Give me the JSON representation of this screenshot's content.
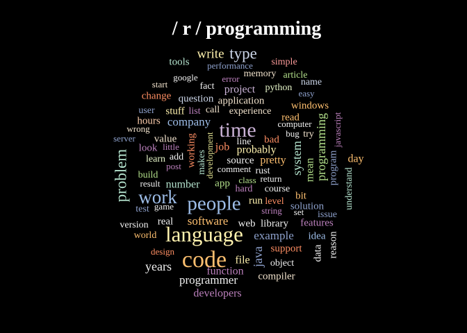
{
  "chart_data": {
    "type": "wordcloud",
    "title": "/ r / programming",
    "palette": {
      "pink": "#f4cae4",
      "green": "#b3e2cd",
      "orange": "#fdcdac",
      "blue": "#cbd5e8",
      "lime": "#e6f5c9",
      "yellow": "#fff2ae",
      "tan": "#f1e2cc",
      "gray": "#cccccc",
      "cream": "#fbeeb8",
      "lightblue": "#9dbde8",
      "gold": "#fdbf6f",
      "peach": "#fb9a99",
      "purple": "#cab2d6",
      "mint": "#b2df8a",
      "white": "#f0f0f0",
      "salmon": "#fc8d62",
      "violet": "#bc80bd",
      "sky": "#8da0cb",
      "khaki": "#d9d98c",
      "lavender": "#9e9ac8"
    },
    "words": [
      {
        "text": "write",
        "color": "yellow",
        "rotate": false
      },
      {
        "text": "type",
        "color": "blue",
        "rotate": false
      },
      {
        "text": "tools",
        "color": "green",
        "rotate": false
      },
      {
        "text": "performance",
        "color": "sky",
        "rotate": false
      },
      {
        "text": "simple",
        "color": "peach",
        "rotate": false
      },
      {
        "text": "google",
        "color": "white",
        "rotate": false
      },
      {
        "text": "error",
        "color": "violet",
        "rotate": false
      },
      {
        "text": "memory",
        "color": "tan",
        "rotate": false
      },
      {
        "text": "article",
        "color": "mint",
        "rotate": false
      },
      {
        "text": "start",
        "color": "tan",
        "rotate": false
      },
      {
        "text": "fact",
        "color": "white",
        "rotate": false
      },
      {
        "text": "project",
        "color": "purple",
        "rotate": false
      },
      {
        "text": "python",
        "color": "lime",
        "rotate": false
      },
      {
        "text": "name",
        "color": "blue",
        "rotate": false
      },
      {
        "text": "change",
        "color": "salmon",
        "rotate": false
      },
      {
        "text": "question",
        "color": "blue",
        "rotate": false
      },
      {
        "text": "application",
        "color": "tan",
        "rotate": false
      },
      {
        "text": "easy",
        "color": "sky",
        "rotate": false
      },
      {
        "text": "windows",
        "color": "gold",
        "rotate": false
      },
      {
        "text": "user",
        "color": "sky",
        "rotate": false
      },
      {
        "text": "stuff",
        "color": "yellow",
        "rotate": false
      },
      {
        "text": "list",
        "color": "violet",
        "rotate": false
      },
      {
        "text": "call",
        "color": "tan",
        "rotate": false
      },
      {
        "text": "experience",
        "color": "tan",
        "rotate": false
      },
      {
        "text": "read",
        "color": "gold",
        "rotate": false
      },
      {
        "text": "hours",
        "color": "orange",
        "rotate": false
      },
      {
        "text": "company",
        "color": "lightblue",
        "rotate": false
      },
      {
        "text": "time",
        "color": "purple",
        "rotate": false
      },
      {
        "text": "computer",
        "color": "white",
        "rotate": false
      },
      {
        "text": "wrong",
        "color": "tan",
        "rotate": false
      },
      {
        "text": "bug",
        "color": "white",
        "rotate": false
      },
      {
        "text": "try",
        "color": "tan",
        "rotate": false
      },
      {
        "text": "javascript",
        "color": "violet",
        "rotate": true
      },
      {
        "text": "server",
        "color": "sky",
        "rotate": false
      },
      {
        "text": "value",
        "color": "tan",
        "rotate": false
      },
      {
        "text": "working",
        "color": "salmon",
        "rotate": true
      },
      {
        "text": "development",
        "color": "khaki",
        "rotate": true
      },
      {
        "text": "line",
        "color": "white",
        "rotate": false
      },
      {
        "text": "bad",
        "color": "salmon",
        "rotate": false
      },
      {
        "text": "look",
        "color": "violet",
        "rotate": false
      },
      {
        "text": "little",
        "color": "violet",
        "rotate": false
      },
      {
        "text": "job",
        "color": "salmon",
        "rotate": false
      },
      {
        "text": "probably",
        "color": "yellow",
        "rotate": false
      },
      {
        "text": "system",
        "color": "green",
        "rotate": true
      },
      {
        "text": "programming",
        "color": "mint",
        "rotate": true
      },
      {
        "text": "day",
        "color": "gold",
        "rotate": false
      },
      {
        "text": "learn",
        "color": "lime",
        "rotate": false
      },
      {
        "text": "add",
        "color": "white",
        "rotate": false
      },
      {
        "text": "makes",
        "color": "green",
        "rotate": true
      },
      {
        "text": "source",
        "color": "white",
        "rotate": false
      },
      {
        "text": "pretty",
        "color": "gold",
        "rotate": false
      },
      {
        "text": "mean",
        "color": "mint",
        "rotate": true
      },
      {
        "text": "program",
        "color": "sky",
        "rotate": true
      },
      {
        "text": "problem",
        "color": "green",
        "rotate": true
      },
      {
        "text": "post",
        "color": "violet",
        "rotate": false
      },
      {
        "text": "comment",
        "color": "white",
        "rotate": false
      },
      {
        "text": "rust",
        "color": "white",
        "rotate": false
      },
      {
        "text": "understand",
        "color": "green",
        "rotate": true
      },
      {
        "text": "build",
        "color": "mint",
        "rotate": false
      },
      {
        "text": "app",
        "color": "mint",
        "rotate": false
      },
      {
        "text": "class",
        "color": "mint",
        "rotate": false
      },
      {
        "text": "return",
        "color": "white",
        "rotate": false
      },
      {
        "text": "result",
        "color": "white",
        "rotate": false
      },
      {
        "text": "number",
        "color": "green",
        "rotate": false
      },
      {
        "text": "hard",
        "color": "violet",
        "rotate": false
      },
      {
        "text": "course",
        "color": "white",
        "rotate": false
      },
      {
        "text": "work",
        "color": "lightblue",
        "rotate": false
      },
      {
        "text": "bit",
        "color": "gold",
        "rotate": false
      },
      {
        "text": "people",
        "color": "lightblue",
        "rotate": false
      },
      {
        "text": "run",
        "color": "yellow",
        "rotate": false
      },
      {
        "text": "level",
        "color": "salmon",
        "rotate": false
      },
      {
        "text": "test",
        "color": "sky",
        "rotate": false
      },
      {
        "text": "game",
        "color": "white",
        "rotate": false
      },
      {
        "text": "solution",
        "color": "sky",
        "rotate": false
      },
      {
        "text": "string",
        "color": "violet",
        "rotate": false
      },
      {
        "text": "set",
        "color": "white",
        "rotate": false
      },
      {
        "text": "issue",
        "color": "sky",
        "rotate": false
      },
      {
        "text": "version",
        "color": "white",
        "rotate": false
      },
      {
        "text": "real",
        "color": "white",
        "rotate": false
      },
      {
        "text": "software",
        "color": "gold",
        "rotate": false
      },
      {
        "text": "web",
        "color": "white",
        "rotate": false
      },
      {
        "text": "library",
        "color": "white",
        "rotate": false
      },
      {
        "text": "features",
        "color": "violet",
        "rotate": false
      },
      {
        "text": "world",
        "color": "gold",
        "rotate": false
      },
      {
        "text": "language",
        "color": "yellow",
        "rotate": false
      },
      {
        "text": "example",
        "color": "sky",
        "rotate": false
      },
      {
        "text": "idea",
        "color": "lightblue",
        "rotate": false
      },
      {
        "text": "java",
        "color": "sky",
        "rotate": true
      },
      {
        "text": "data",
        "color": "white",
        "rotate": true
      },
      {
        "text": "reason",
        "color": "white",
        "rotate": true
      },
      {
        "text": "design",
        "color": "salmon",
        "rotate": false
      },
      {
        "text": "support",
        "color": "salmon",
        "rotate": false
      },
      {
        "text": "code",
        "color": "gold",
        "rotate": false
      },
      {
        "text": "file",
        "color": "yellow",
        "rotate": false
      },
      {
        "text": "object",
        "color": "white",
        "rotate": false
      },
      {
        "text": "years",
        "color": "white",
        "rotate": false
      },
      {
        "text": "function",
        "color": "violet",
        "rotate": false
      },
      {
        "text": "compiler",
        "color": "tan",
        "rotate": false
      },
      {
        "text": "programmer",
        "color": "white",
        "rotate": false
      },
      {
        "text": "developers",
        "color": "violet",
        "rotate": false
      }
    ]
  }
}
